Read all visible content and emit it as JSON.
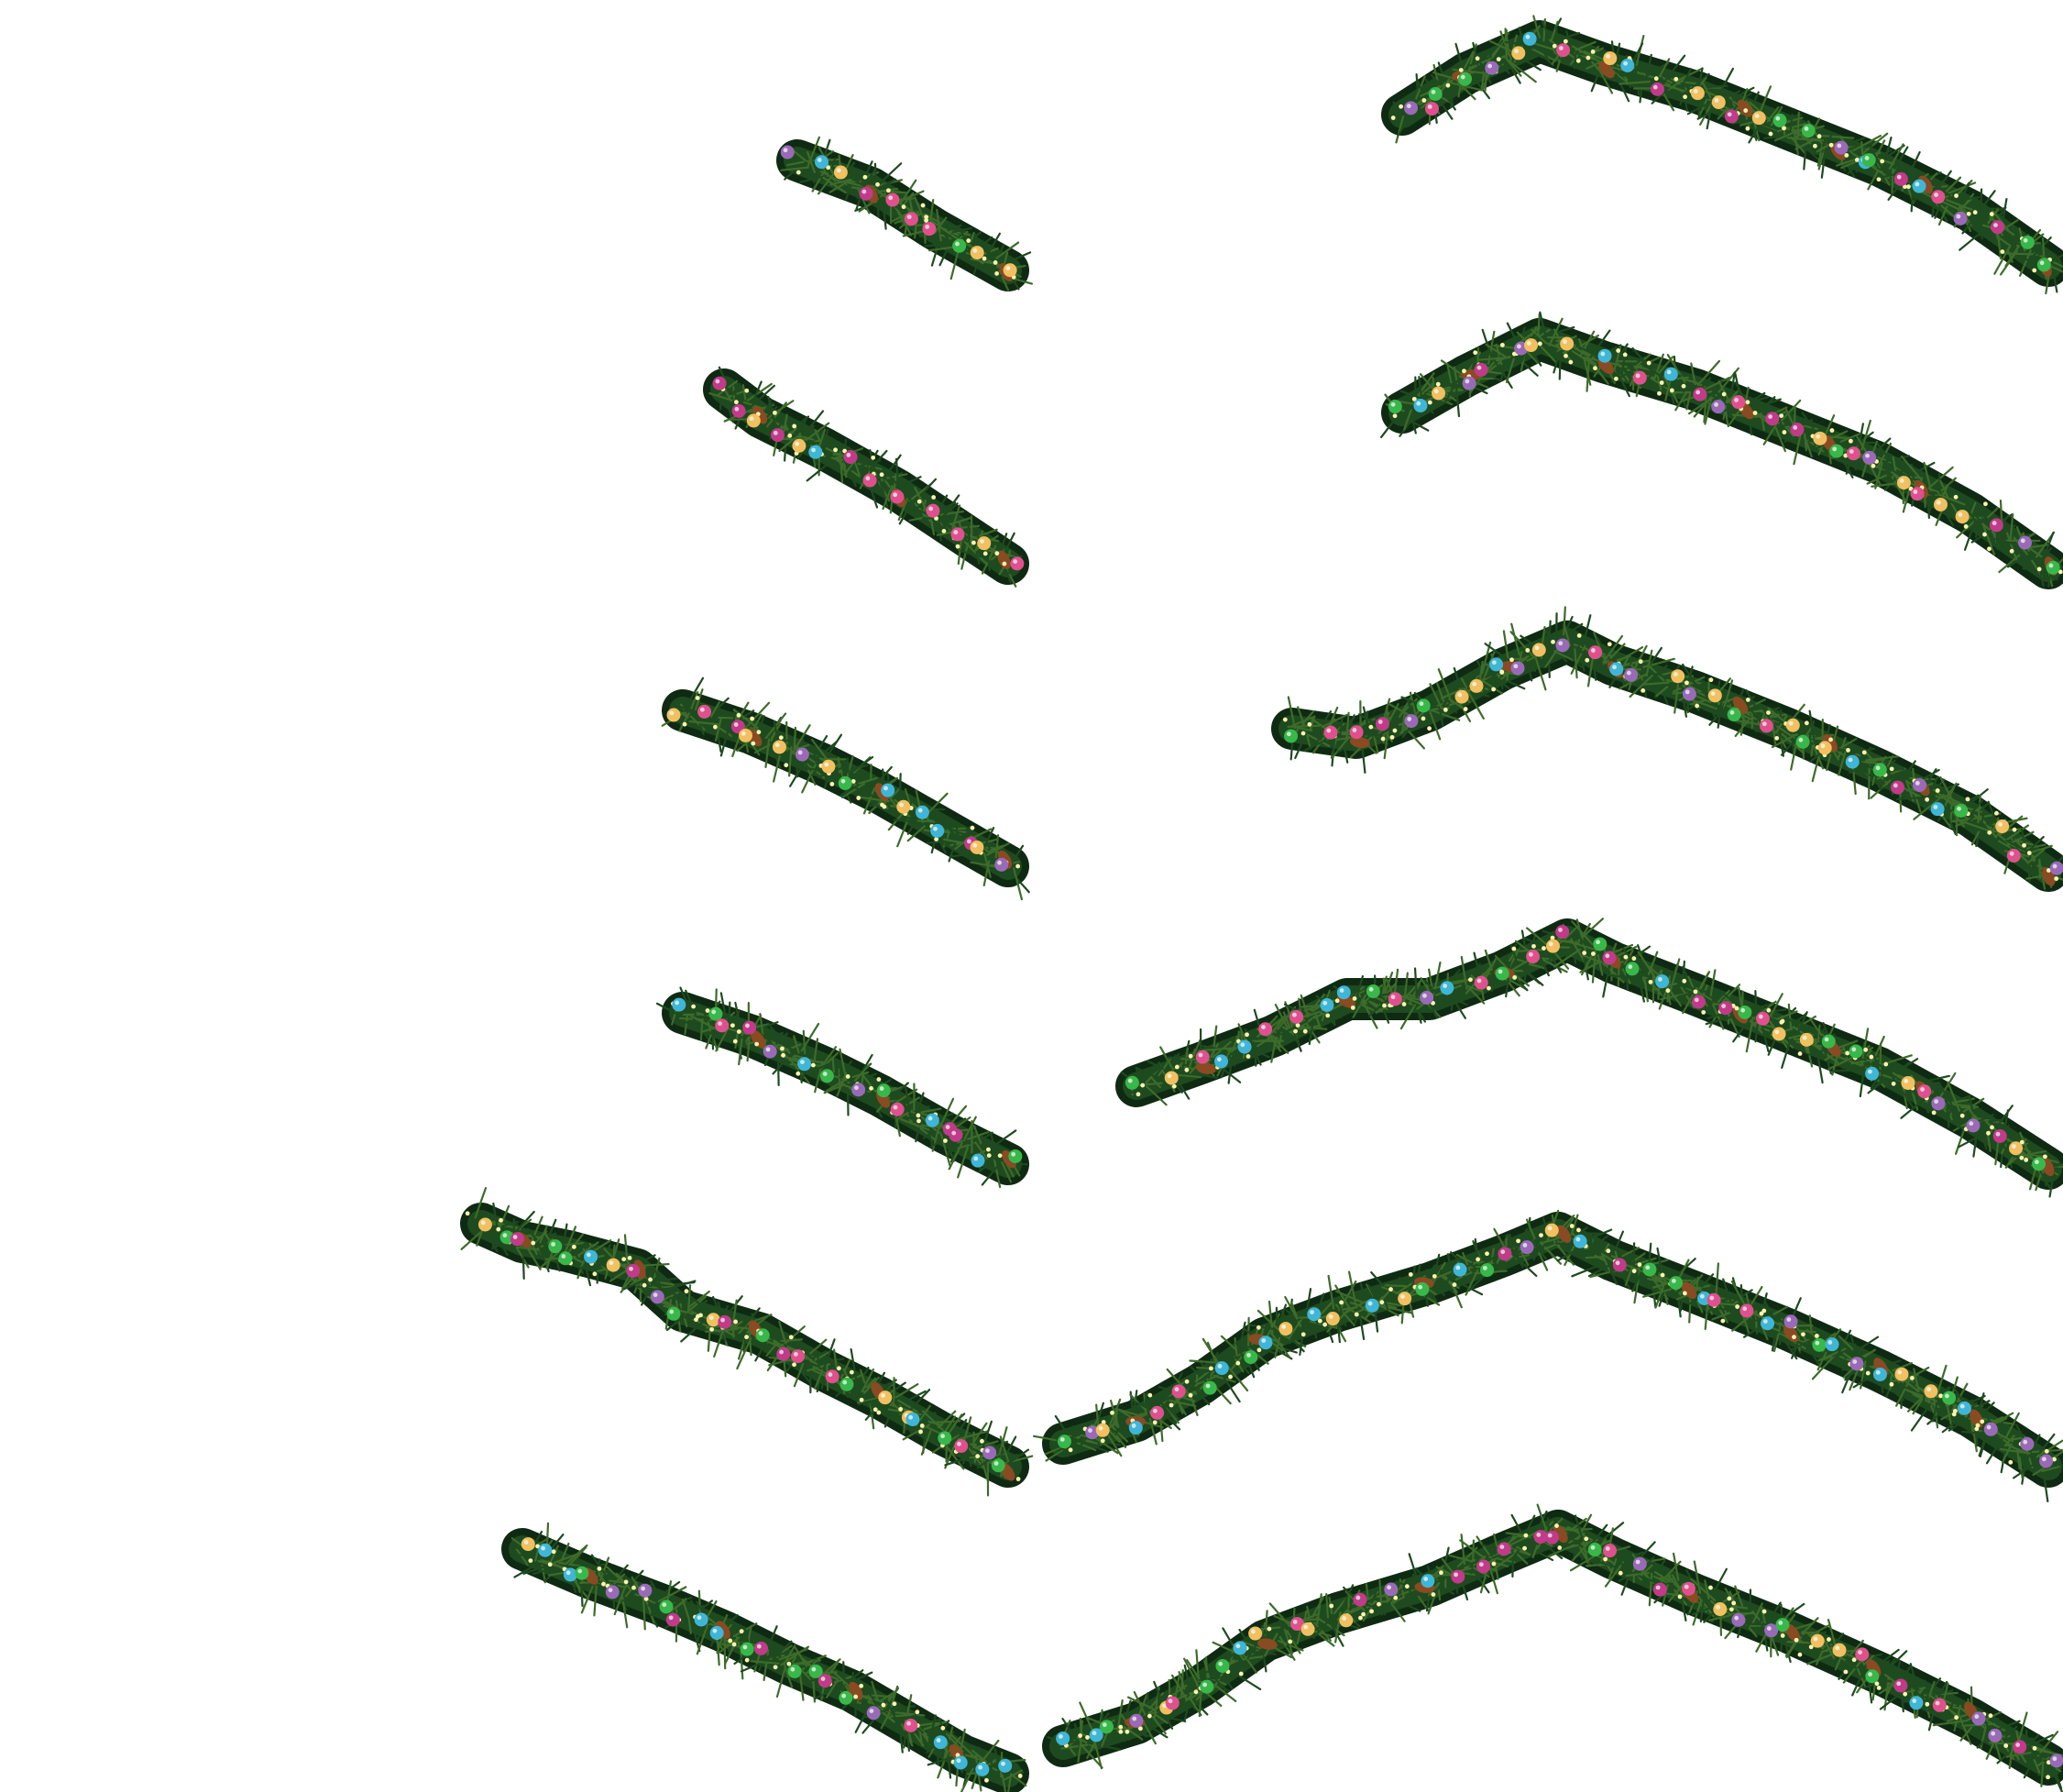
{
  "sheet": {
    "background": "#ffffff",
    "kind": "garland-sprite-sheet",
    "rows": 6
  },
  "palette": {
    "needle_dark": "#0f2a12",
    "needle_mid": "#1e4a1f",
    "needle_light": "#3d6b2a",
    "cone": "#8a4a22",
    "bulbs": [
      "#e0508e",
      "#38b84a",
      "#3fb6d8",
      "#f2c060",
      "#c23a8a",
      "#9a6ab8"
    ],
    "light_glow": "#fff3b0"
  },
  "frames": [
    {
      "name": "left-garland-frame-1",
      "length_ratio": 0.33
    },
    {
      "name": "left-garland-frame-2",
      "length_ratio": 0.45
    },
    {
      "name": "left-garland-frame-3",
      "length_ratio": 0.52
    },
    {
      "name": "left-garland-frame-4",
      "length_ratio": 0.52
    },
    {
      "name": "left-garland-frame-5",
      "length_ratio": 0.82
    },
    {
      "name": "left-garland-frame-6",
      "length_ratio": 1.0
    },
    {
      "name": "right-garland-frame-1",
      "length_ratio": 0.7
    },
    {
      "name": "right-garland-frame-2",
      "length_ratio": 0.7
    },
    {
      "name": "right-garland-frame-3",
      "length_ratio": 0.82
    },
    {
      "name": "right-garland-frame-4",
      "length_ratio": 0.95
    },
    {
      "name": "right-garland-frame-5",
      "length_ratio": 1.0
    },
    {
      "name": "right-garland-frame-6",
      "length_ratio": 1.0
    }
  ]
}
